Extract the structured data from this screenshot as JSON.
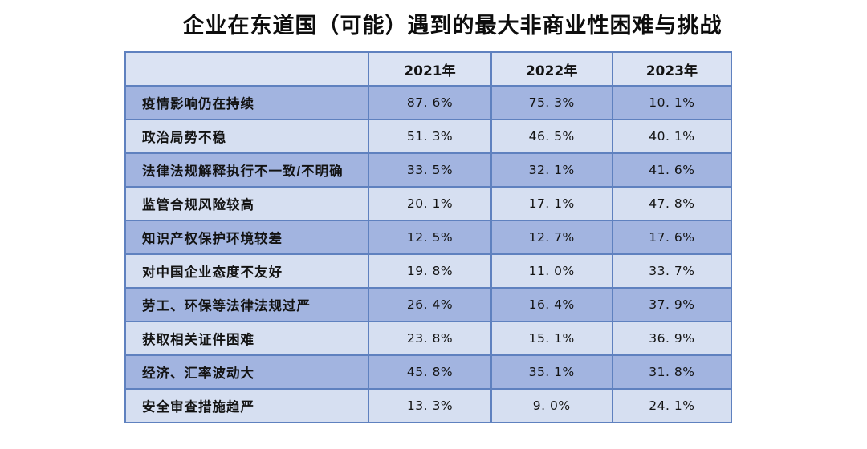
{
  "title": "企业在东道国（可能）遇到的最大非商业性困难与挑战",
  "colors": {
    "header_bg": "#dbe3f3",
    "row_dark_bg": "#a2b4e0",
    "row_light_bg": "#d6dff1",
    "grid_border": "#5f81bf",
    "text": "#131313",
    "page_bg": "#ffffff"
  },
  "table": {
    "columns": [
      "",
      "2021年",
      "2022年",
      "2023年"
    ],
    "rows": [
      {
        "label": "疫情影响仍在持续",
        "values": [
          "87. 6%",
          "75. 3%",
          "10. 1%"
        ]
      },
      {
        "label": "政治局势不稳",
        "values": [
          "51. 3%",
          "46. 5%",
          "40. 1%"
        ]
      },
      {
        "label": "法律法规解释执行不一致/不明确",
        "values": [
          "33. 5%",
          "32. 1%",
          "41. 6%"
        ]
      },
      {
        "label": "监管合规风险较高",
        "values": [
          "20. 1%",
          "17. 1%",
          "47. 8%"
        ]
      },
      {
        "label": "知识产权保护环境较差",
        "values": [
          "12. 5%",
          "12. 7%",
          "17. 6%"
        ]
      },
      {
        "label": "对中国企业态度不友好",
        "values": [
          "19. 8%",
          "11. 0%",
          "33. 7%"
        ]
      },
      {
        "label": "劳工、环保等法律法规过严",
        "values": [
          "26. 4%",
          "16. 4%",
          "37. 9%"
        ]
      },
      {
        "label": "获取相关证件困难",
        "values": [
          "23. 8%",
          "15. 1%",
          "36. 9%"
        ]
      },
      {
        "label": "经济、汇率波动大",
        "values": [
          "45. 8%",
          "35. 1%",
          "31. 8%"
        ]
      },
      {
        "label": "安全审查措施趋严",
        "values": [
          "13. 3%",
          "9. 0%",
          "24. 1%"
        ]
      }
    ]
  },
  "chart_data": {
    "type": "table",
    "title": "企业在东道国（可能）遇到的最大非商业性困难与挑战",
    "unit": "%",
    "categories": [
      "疫情影响仍在持续",
      "政治局势不稳",
      "法律法规解释执行不一致/不明确",
      "监管合规风险较高",
      "知识产权保护环境较差",
      "对中国企业态度不友好",
      "劳工、环保等法律法规过严",
      "获取相关证件困难",
      "经济、汇率波动大",
      "安全审查措施趋严"
    ],
    "series": [
      {
        "name": "2021年",
        "values": [
          87.6,
          51.3,
          33.5,
          20.1,
          12.5,
          19.8,
          26.4,
          23.8,
          45.8,
          13.3
        ]
      },
      {
        "name": "2022年",
        "values": [
          75.3,
          46.5,
          32.1,
          17.1,
          12.7,
          11.0,
          16.4,
          15.1,
          35.1,
          9.0
        ]
      },
      {
        "name": "2023年",
        "values": [
          10.1,
          40.1,
          41.6,
          47.8,
          17.6,
          33.7,
          37.9,
          36.9,
          31.8,
          24.1
        ]
      }
    ]
  }
}
